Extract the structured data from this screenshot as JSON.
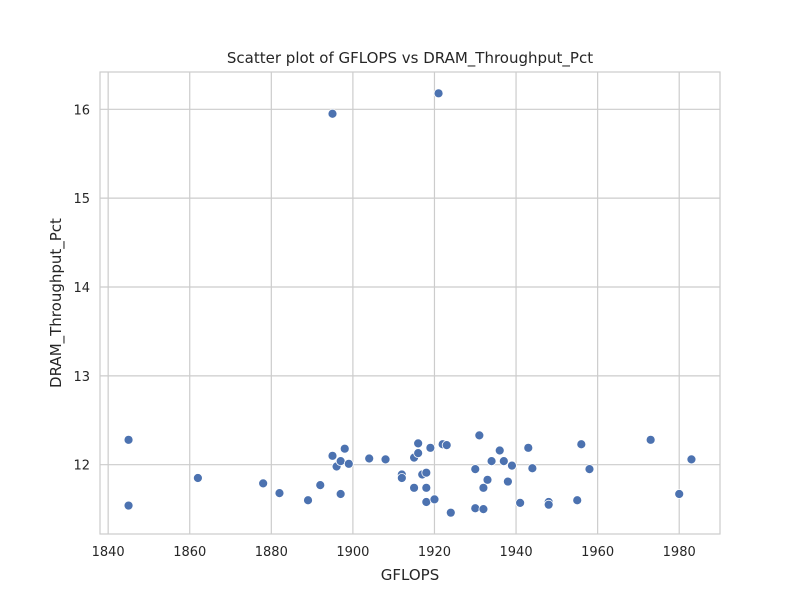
{
  "chart_data": {
    "type": "scatter",
    "title": "Scatter plot of GFLOPS vs DRAM_Throughput_Pct",
    "xlabel": "GFLOPS",
    "ylabel": "DRAM_Throughput_Pct",
    "xlim": [
      1838,
      1990
    ],
    "ylim": [
      11.22,
      16.42
    ],
    "xticks": [
      1840,
      1860,
      1880,
      1900,
      1920,
      1940,
      1960,
      1980
    ],
    "yticks": [
      12,
      13,
      14,
      15,
      16
    ],
    "grid": true,
    "legend": "none",
    "point_color": "#4c72b0",
    "points": [
      {
        "x": 1845,
        "y": 12.28
      },
      {
        "x": 1845,
        "y": 11.54
      },
      {
        "x": 1862,
        "y": 11.85
      },
      {
        "x": 1878,
        "y": 11.79
      },
      {
        "x": 1882,
        "y": 11.68
      },
      {
        "x": 1889,
        "y": 11.6
      },
      {
        "x": 1892,
        "y": 11.77
      },
      {
        "x": 1895,
        "y": 15.95
      },
      {
        "x": 1895,
        "y": 12.1
      },
      {
        "x": 1896,
        "y": 11.98
      },
      {
        "x": 1897,
        "y": 12.04
      },
      {
        "x": 1897,
        "y": 11.67
      },
      {
        "x": 1898,
        "y": 12.18
      },
      {
        "x": 1899,
        "y": 12.01
      },
      {
        "x": 1904,
        "y": 12.07
      },
      {
        "x": 1908,
        "y": 12.06
      },
      {
        "x": 1912,
        "y": 11.89
      },
      {
        "x": 1912,
        "y": 11.85
      },
      {
        "x": 1915,
        "y": 12.08
      },
      {
        "x": 1915,
        "y": 11.74
      },
      {
        "x": 1916,
        "y": 12.24
      },
      {
        "x": 1916,
        "y": 12.13
      },
      {
        "x": 1917,
        "y": 11.89
      },
      {
        "x": 1918,
        "y": 11.91
      },
      {
        "x": 1918,
        "y": 11.74
      },
      {
        "x": 1918,
        "y": 11.58
      },
      {
        "x": 1919,
        "y": 12.19
      },
      {
        "x": 1920,
        "y": 11.61
      },
      {
        "x": 1921,
        "y": 16.18
      },
      {
        "x": 1922,
        "y": 12.23
      },
      {
        "x": 1923,
        "y": 12.22
      },
      {
        "x": 1924,
        "y": 11.46
      },
      {
        "x": 1930,
        "y": 11.95
      },
      {
        "x": 1930,
        "y": 11.51
      },
      {
        "x": 1931,
        "y": 12.33
      },
      {
        "x": 1932,
        "y": 11.74
      },
      {
        "x": 1932,
        "y": 11.5
      },
      {
        "x": 1933,
        "y": 11.83
      },
      {
        "x": 1934,
        "y": 12.04
      },
      {
        "x": 1936,
        "y": 12.16
      },
      {
        "x": 1937,
        "y": 12.04
      },
      {
        "x": 1938,
        "y": 11.81
      },
      {
        "x": 1939,
        "y": 11.99
      },
      {
        "x": 1941,
        "y": 11.57
      },
      {
        "x": 1943,
        "y": 12.19
      },
      {
        "x": 1944,
        "y": 11.96
      },
      {
        "x": 1948,
        "y": 11.58
      },
      {
        "x": 1948,
        "y": 11.55
      },
      {
        "x": 1955,
        "y": 11.6
      },
      {
        "x": 1956,
        "y": 12.23
      },
      {
        "x": 1958,
        "y": 11.95
      },
      {
        "x": 1973,
        "y": 12.28
      },
      {
        "x": 1980,
        "y": 11.67
      },
      {
        "x": 1983,
        "y": 12.06
      }
    ]
  }
}
